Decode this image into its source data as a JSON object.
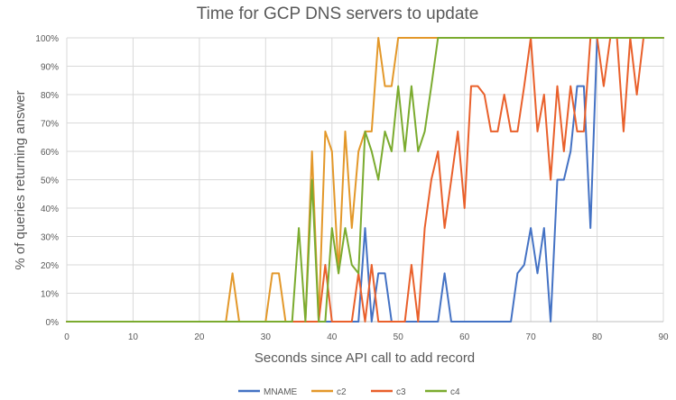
{
  "chart_data": {
    "type": "line",
    "title": "Time for GCP DNS servers to update",
    "xlabel": "Seconds since API call to add record",
    "ylabel": "% of queries returning answer",
    "xlim": [
      0,
      90
    ],
    "ylim": [
      0,
      100
    ],
    "x_ticks": [
      "0",
      "10",
      "20",
      "30",
      "40",
      "50",
      "60",
      "70",
      "80",
      "90"
    ],
    "y_ticks": [
      "0%",
      "10%",
      "20%",
      "30%",
      "40%",
      "50%",
      "60%",
      "70%",
      "80%",
      "90%",
      "100%"
    ],
    "grid": true,
    "legend_position": "bottom",
    "series": [
      {
        "name": "MNAME",
        "color": "#4472C4",
        "points": [
          [
            0,
            0
          ],
          [
            44,
            0
          ],
          [
            45,
            33
          ],
          [
            46,
            0
          ],
          [
            47,
            17
          ],
          [
            48,
            17
          ],
          [
            49,
            0
          ],
          [
            56,
            0
          ],
          [
            57,
            17
          ],
          [
            58,
            0
          ],
          [
            67,
            0
          ],
          [
            68,
            17
          ],
          [
            69,
            20
          ],
          [
            70,
            33
          ],
          [
            71,
            17
          ],
          [
            72,
            33
          ],
          [
            73,
            0
          ],
          [
            74,
            50
          ],
          [
            75,
            50
          ],
          [
            76,
            60
          ],
          [
            77,
            83
          ],
          [
            78,
            83
          ],
          [
            79,
            33
          ],
          [
            80,
            100
          ],
          [
            81,
            100
          ],
          [
            90,
            100
          ]
        ]
      },
      {
        "name": "c2",
        "color": "#E3982A",
        "points": [
          [
            0,
            0
          ],
          [
            24,
            0
          ],
          [
            25,
            17
          ],
          [
            26,
            0
          ],
          [
            30,
            0
          ],
          [
            31,
            17
          ],
          [
            32,
            17
          ],
          [
            33,
            0
          ],
          [
            36,
            0
          ],
          [
            37,
            60
          ],
          [
            38,
            0
          ],
          [
            39,
            67
          ],
          [
            40,
            60
          ],
          [
            41,
            17
          ],
          [
            42,
            67
          ],
          [
            43,
            33
          ],
          [
            44,
            60
          ],
          [
            45,
            67
          ],
          [
            46,
            67
          ],
          [
            47,
            100
          ],
          [
            48,
            83
          ],
          [
            49,
            83
          ],
          [
            50,
            100
          ],
          [
            90,
            100
          ]
        ]
      },
      {
        "name": "c3",
        "color": "#E9602B",
        "points": [
          [
            0,
            0
          ],
          [
            38,
            0
          ],
          [
            39,
            20
          ],
          [
            40,
            0
          ],
          [
            43,
            0
          ],
          [
            44,
            17
          ],
          [
            45,
            0
          ],
          [
            46,
            20
          ],
          [
            47,
            0
          ],
          [
            51,
            0
          ],
          [
            52,
            20
          ],
          [
            53,
            0
          ],
          [
            54,
            33
          ],
          [
            55,
            50
          ],
          [
            56,
            60
          ],
          [
            57,
            33
          ],
          [
            58,
            50
          ],
          [
            59,
            67
          ],
          [
            60,
            40
          ],
          [
            61,
            83
          ],
          [
            62,
            83
          ],
          [
            63,
            80
          ],
          [
            64,
            67
          ],
          [
            65,
            67
          ],
          [
            66,
            80
          ],
          [
            67,
            67
          ],
          [
            68,
            67
          ],
          [
            69,
            83
          ],
          [
            70,
            100
          ],
          [
            71,
            67
          ],
          [
            72,
            80
          ],
          [
            73,
            50
          ],
          [
            74,
            83
          ],
          [
            75,
            60
          ],
          [
            76,
            83
          ],
          [
            77,
            67
          ],
          [
            78,
            67
          ],
          [
            79,
            100
          ],
          [
            80,
            100
          ],
          [
            81,
            83
          ],
          [
            82,
            100
          ],
          [
            83,
            100
          ],
          [
            84,
            67
          ],
          [
            85,
            100
          ],
          [
            86,
            80
          ],
          [
            87,
            100
          ],
          [
            90,
            100
          ]
        ]
      },
      {
        "name": "c4",
        "color": "#7BAB2F",
        "points": [
          [
            0,
            0
          ],
          [
            34,
            0
          ],
          [
            35,
            33
          ],
          [
            36,
            0
          ],
          [
            37,
            50
          ],
          [
            38,
            0
          ],
          [
            39,
            0
          ],
          [
            40,
            33
          ],
          [
            41,
            17
          ],
          [
            42,
            33
          ],
          [
            43,
            20
          ],
          [
            44,
            17
          ],
          [
            45,
            67
          ],
          [
            46,
            60
          ],
          [
            47,
            50
          ],
          [
            48,
            67
          ],
          [
            49,
            60
          ],
          [
            50,
            83
          ],
          [
            51,
            60
          ],
          [
            52,
            83
          ],
          [
            53,
            60
          ],
          [
            54,
            67
          ],
          [
            55,
            83
          ],
          [
            56,
            100
          ],
          [
            90,
            100
          ]
        ]
      }
    ]
  }
}
